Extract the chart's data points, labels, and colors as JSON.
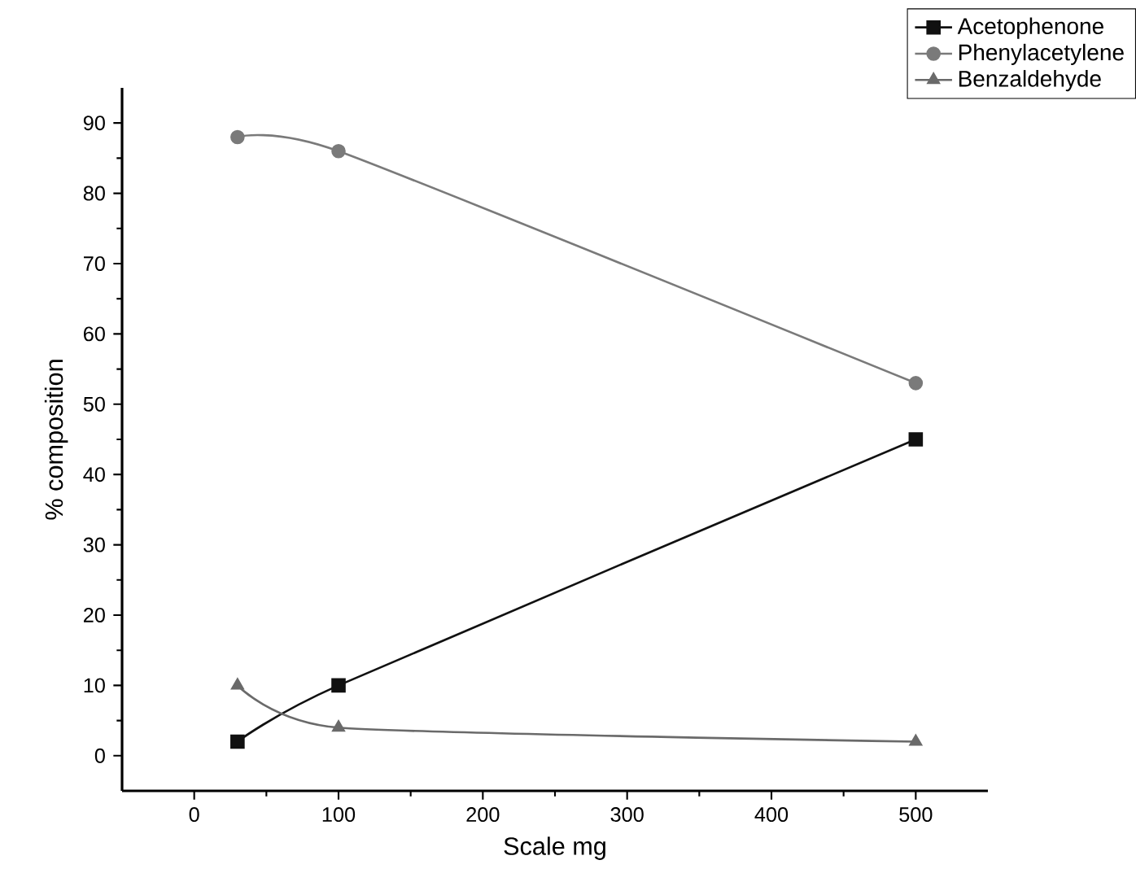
{
  "chart_data": {
    "type": "line",
    "xlabel": "Scale mg",
    "ylabel": "% composition",
    "xlim": [
      -50,
      550
    ],
    "xticks": [
      0,
      100,
      200,
      300,
      400,
      500
    ],
    "ylim": [
      -5,
      95
    ],
    "yticks": [
      0,
      10,
      20,
      30,
      40,
      50,
      60,
      70,
      80,
      90
    ],
    "legend": "top right",
    "grid": false,
    "line_style": "solid",
    "series": [
      {
        "name": "Acetophenone",
        "color": "#111111",
        "marker": "square",
        "x": [
          30,
          100,
          500
        ],
        "values": [
          2,
          10,
          45
        ]
      },
      {
        "name": "Phenylacetylene",
        "color": "#7a7a7a",
        "marker": "circle",
        "x": [
          30,
          100,
          500
        ],
        "values": [
          88,
          86,
          53
        ]
      },
      {
        "name": "Benzaldehyde",
        "color": "#6a6a6a",
        "marker": "triangle",
        "x": [
          30,
          100,
          500
        ],
        "values": [
          10,
          4,
          2
        ]
      }
    ]
  }
}
